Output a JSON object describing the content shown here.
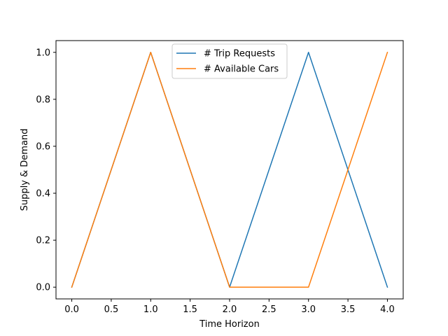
{
  "chart_data": {
    "type": "line",
    "title": "",
    "xlabel": "Time Horizon",
    "ylabel": "Supply & Demand",
    "x": [
      0,
      1,
      2,
      3,
      4
    ],
    "series": [
      {
        "name": "# Trip Requests",
        "color": "#1f77b4",
        "values": [
          0,
          1,
          0,
          1,
          0
        ]
      },
      {
        "name": "# Available Cars",
        "color": "#ff7f0e",
        "values": [
          0,
          1,
          0,
          0,
          1
        ]
      }
    ],
    "xlim": [
      -0.2,
      4.2
    ],
    "ylim": [
      -0.05,
      1.05
    ],
    "xticks": [
      0.0,
      0.5,
      1.0,
      1.5,
      2.0,
      2.5,
      3.0,
      3.5,
      4.0
    ],
    "xtick_labels": [
      "0.0",
      "0.5",
      "1.0",
      "1.5",
      "2.0",
      "2.5",
      "3.0",
      "3.5",
      "4.0"
    ],
    "yticks": [
      0.0,
      0.2,
      0.4,
      0.6,
      0.8,
      1.0
    ],
    "ytick_labels": [
      "0.0",
      "0.2",
      "0.4",
      "0.6",
      "0.8",
      "1.0"
    ],
    "grid": false,
    "legend_position": "top-center"
  }
}
